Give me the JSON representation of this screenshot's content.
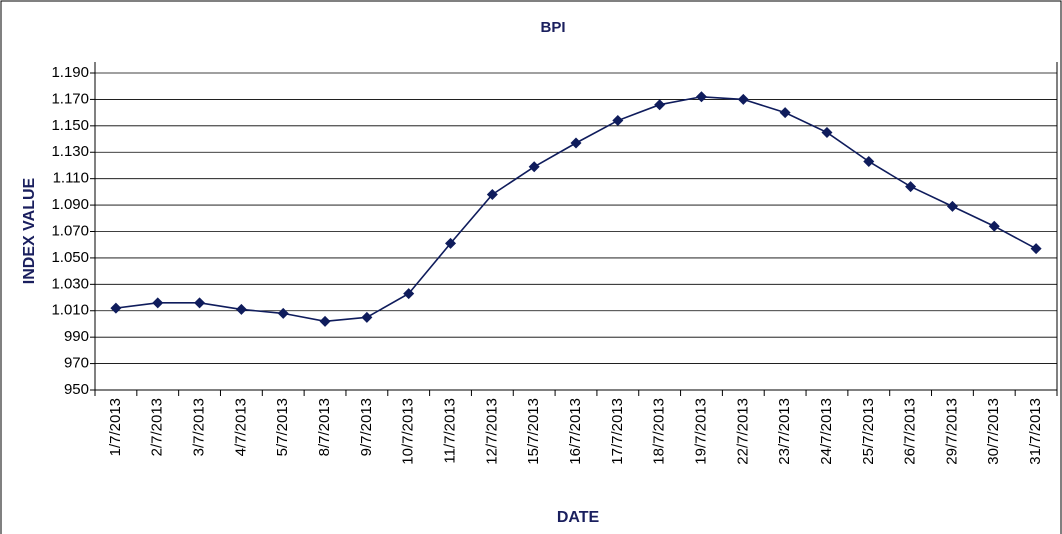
{
  "chart_data": {
    "type": "line",
    "title": "BPI",
    "x_label": "DATE",
    "y_label": "INDEX VALUE",
    "categories": [
      "1/7/2013",
      "2/7/2013",
      "3/7/2013",
      "4/7/2013",
      "5/7/2013",
      "8/7/2013",
      "9/7/2013",
      "10/7/2013",
      "11/7/2013",
      "12/7/2013",
      "15/7/2013",
      "16/7/2013",
      "17/7/2013",
      "18/7/2013",
      "19/7/2013",
      "22/7/2013",
      "23/7/2013",
      "24/7/2013",
      "25/7/2013",
      "26/7/2013",
      "29/7/2013",
      "30/7/2013",
      "31/7/2013"
    ],
    "series": [
      {
        "name": "BPI",
        "color": "#0f1c5c",
        "values": [
          1012,
          1016,
          1016,
          1011,
          1008,
          1002,
          1005,
          1023,
          1061,
          1098,
          1119,
          1137,
          1154,
          1166,
          1172,
          1170,
          1160,
          1145,
          1123,
          1104,
          1089,
          1074,
          1057
        ]
      }
    ],
    "ylim": [
      950,
      1190
    ],
    "yticks": [
      950,
      970,
      990,
      {
        "value": 1010,
        "label": "1.010"
      },
      {
        "value": 1030,
        "label": "1.030"
      },
      {
        "value": 1050,
        "label": "1.050"
      },
      {
        "value": 1070,
        "label": "1.070"
      },
      {
        "value": 1090,
        "label": "1.090"
      },
      {
        "value": 1110,
        "label": "1.110"
      },
      {
        "value": 1130,
        "label": "1.130"
      },
      {
        "value": 1150,
        "label": "1.150"
      },
      {
        "value": 1170,
        "label": "1.170"
      },
      {
        "value": 1190,
        "label": "1.190"
      }
    ],
    "grid": true
  }
}
